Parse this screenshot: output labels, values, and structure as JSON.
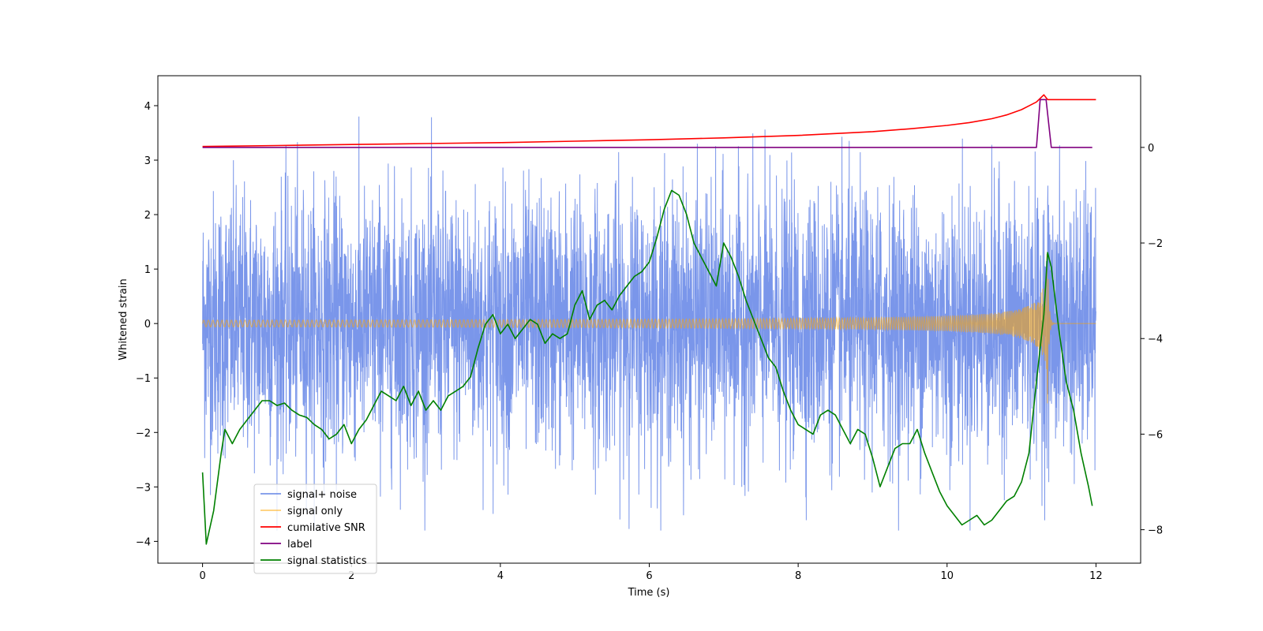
{
  "chart_data": {
    "type": "line",
    "title": "",
    "xlabel": "Time (s)",
    "ylabel": "Whitened strain",
    "y2label": "",
    "xlim": [
      -0.6,
      12.6
    ],
    "ylim": [
      -4.4,
      4.55
    ],
    "y2lim": [
      -8.7,
      1.5
    ],
    "xticks": [
      0,
      2,
      4,
      6,
      8,
      10,
      12
    ],
    "yticks": [
      -4,
      -3,
      -2,
      -1,
      0,
      1,
      2,
      3,
      4
    ],
    "y2ticks": [
      -8,
      -6,
      -4,
      -2,
      0
    ],
    "grid": false,
    "legend_position": "lower-left",
    "series": [
      {
        "name": "signal+ noise",
        "axis": "left",
        "color": "#4169E1",
        "opacity": 0.7,
        "kind": "noise",
        "x_range": [
          0,
          12
        ],
        "approx_std": 1.2,
        "approx_range": [
          -3.8,
          3.8
        ]
      },
      {
        "name": "signal only",
        "axis": "left",
        "color": "#FFA500",
        "opacity": 0.55,
        "kind": "chirp",
        "x_range": [
          0,
          12
        ],
        "peak_time": 11.35,
        "peak_amplitude": 1.7
      },
      {
        "name": "cumilative SNR",
        "axis": "right",
        "color": "#FF0000",
        "x": [
          0,
          1,
          2,
          3,
          4,
          5,
          6,
          7,
          8,
          9,
          9.5,
          10,
          10.3,
          10.6,
          10.8,
          11.0,
          11.1,
          11.2,
          11.3,
          11.35,
          12.0
        ],
        "y": [
          0.02,
          0.04,
          0.06,
          0.08,
          0.1,
          0.13,
          0.16,
          0.2,
          0.25,
          0.33,
          0.39,
          0.46,
          0.52,
          0.6,
          0.68,
          0.79,
          0.87,
          0.95,
          1.1,
          1.0,
          1.0
        ]
      },
      {
        "name": "label",
        "axis": "right",
        "color": "#800080",
        "x": [
          0,
          11.2,
          11.25,
          11.33,
          11.4,
          11.95
        ],
        "y": [
          0,
          0,
          1.0,
          1.0,
          0,
          0
        ]
      },
      {
        "name": "signal statistics",
        "axis": "right",
        "color": "#008000",
        "x": [
          0,
          0.05,
          0.15,
          0.25,
          0.3,
          0.4,
          0.5,
          0.6,
          0.7,
          0.8,
          0.9,
          1.0,
          1.1,
          1.2,
          1.3,
          1.4,
          1.5,
          1.6,
          1.7,
          1.8,
          1.9,
          2.0,
          2.1,
          2.2,
          2.3,
          2.4,
          2.5,
          2.6,
          2.7,
          2.8,
          2.9,
          3.0,
          3.1,
          3.2,
          3.3,
          3.4,
          3.5,
          3.6,
          3.7,
          3.8,
          3.9,
          4.0,
          4.1,
          4.2,
          4.3,
          4.4,
          4.5,
          4.6,
          4.7,
          4.8,
          4.9,
          5.0,
          5.1,
          5.2,
          5.3,
          5.4,
          5.5,
          5.6,
          5.7,
          5.8,
          5.9,
          6.0,
          6.1,
          6.2,
          6.3,
          6.4,
          6.5,
          6.6,
          6.7,
          6.8,
          6.9,
          7.0,
          7.1,
          7.2,
          7.3,
          7.4,
          7.5,
          7.6,
          7.7,
          7.8,
          7.9,
          8.0,
          8.1,
          8.2,
          8.3,
          8.4,
          8.5,
          8.6,
          8.7,
          8.8,
          8.9,
          9.0,
          9.1,
          9.2,
          9.3,
          9.4,
          9.5,
          9.6,
          9.7,
          9.8,
          9.9,
          10.0,
          10.1,
          10.2,
          10.3,
          10.4,
          10.5,
          10.6,
          10.7,
          10.8,
          10.9,
          11.0,
          11.1,
          11.2,
          11.3,
          11.35,
          11.4,
          11.5,
          11.6,
          11.7,
          11.8,
          11.9,
          11.95
        ],
        "y": [
          -6.8,
          -8.3,
          -7.6,
          -6.4,
          -5.9,
          -6.2,
          -5.9,
          -5.7,
          -5.5,
          -5.3,
          -5.3,
          -5.4,
          -5.35,
          -5.5,
          -5.6,
          -5.65,
          -5.8,
          -5.9,
          -6.1,
          -6.0,
          -5.8,
          -6.2,
          -5.9,
          -5.7,
          -5.4,
          -5.1,
          -5.2,
          -5.3,
          -5.0,
          -5.4,
          -5.1,
          -5.5,
          -5.3,
          -5.5,
          -5.2,
          -5.1,
          -5.0,
          -4.8,
          -4.2,
          -3.7,
          -3.5,
          -3.9,
          -3.7,
          -4.0,
          -3.8,
          -3.6,
          -3.7,
          -4.1,
          -3.9,
          -4.0,
          -3.9,
          -3.3,
          -3.0,
          -3.6,
          -3.3,
          -3.2,
          -3.4,
          -3.1,
          -2.9,
          -2.7,
          -2.6,
          -2.4,
          -1.9,
          -1.3,
          -0.9,
          -1.0,
          -1.4,
          -2.0,
          -2.3,
          -2.6,
          -2.9,
          -2.0,
          -2.3,
          -2.7,
          -3.2,
          -3.6,
          -4.0,
          -4.4,
          -4.6,
          -5.1,
          -5.5,
          -5.8,
          -5.9,
          -6.0,
          -5.6,
          -5.5,
          -5.6,
          -5.9,
          -6.2,
          -5.9,
          -6.0,
          -6.5,
          -7.1,
          -6.7,
          -6.3,
          -6.2,
          -6.2,
          -5.9,
          -6.4,
          -6.8,
          -7.2,
          -7.5,
          -7.7,
          -7.9,
          -7.8,
          -7.7,
          -7.9,
          -7.8,
          -7.6,
          -7.4,
          -7.3,
          -7.0,
          -6.4,
          -4.9,
          -3.5,
          -2.2,
          -2.5,
          -3.8,
          -4.9,
          -5.5,
          -6.4,
          -7.1,
          -7.5
        ]
      }
    ]
  }
}
